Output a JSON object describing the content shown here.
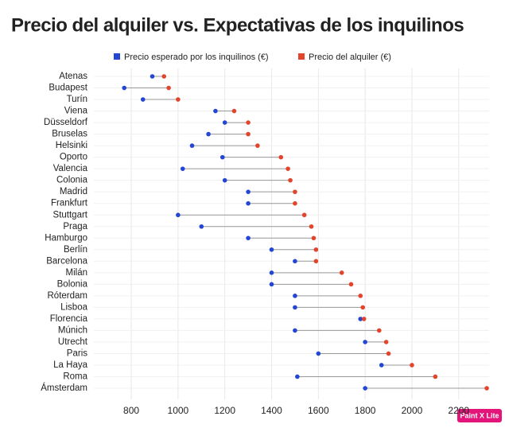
{
  "chart_data": {
    "type": "dumbbell",
    "title": "Precio del alquiler vs. Expectativas de los inquilinos",
    "categories": [
      "Atenas",
      "Budapest",
      "Turín",
      "Viena",
      "Düsseldorf",
      "Bruselas",
      "Helsinki",
      "Oporto",
      "Valencia",
      "Colonia",
      "Madrid",
      "Frankfurt",
      "Stuttgart",
      "Praga",
      "Hamburgo",
      "Berlín",
      "Barcelona",
      "Milán",
      "Bolonia",
      "Róterdam",
      "Lisboa",
      "Florencia",
      "Múnich",
      "Utrecht",
      "Paris",
      "La Haya",
      "Roma",
      "Ámsterdam"
    ],
    "series": [
      {
        "name": "Precio esperado por los inquilinos (€)",
        "color": "#2446d4",
        "values": [
          890,
          770,
          850,
          1160,
          1200,
          1130,
          1060,
          1190,
          1020,
          1200,
          1300,
          1300,
          1000,
          1100,
          1300,
          1400,
          1500,
          1400,
          1400,
          1500,
          1500,
          1780,
          1500,
          1800,
          1600,
          1870,
          1510,
          1800
        ]
      },
      {
        "name": "Precio del alquiler (€)",
        "color": "#e2452c",
        "values": [
          940,
          960,
          1000,
          1240,
          1300,
          1300,
          1340,
          1440,
          1470,
          1480,
          1500,
          1500,
          1540,
          1570,
          1580,
          1590,
          1590,
          1700,
          1740,
          1780,
          1790,
          1795,
          1860,
          1890,
          1900,
          2000,
          2100,
          2320
        ]
      }
    ],
    "xlim": [
      640,
      2330
    ],
    "xticks": [
      800,
      1000,
      1200,
      1400,
      1600,
      1800,
      2000,
      2200
    ],
    "grid": true,
    "watermark": "Paint X Lite"
  }
}
